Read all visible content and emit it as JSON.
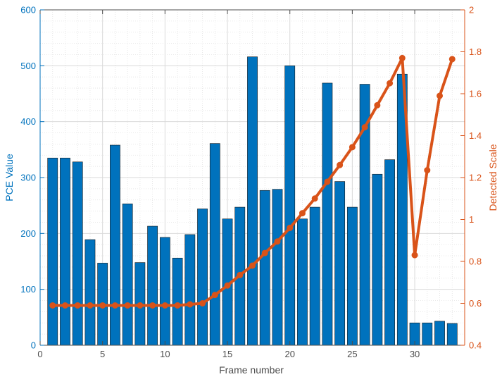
{
  "chart_data": {
    "type": "bar+line",
    "xlabel": "Frame number",
    "ylabel_left": "PCE Value",
    "ylabel_right": "Detected Scale",
    "xlim": [
      0,
      34
    ],
    "ylim_left": [
      0,
      600
    ],
    "ylim_right": [
      0.4,
      2
    ],
    "x_ticks": [
      0,
      5,
      10,
      15,
      20,
      25,
      30
    ],
    "y_left_ticks": [
      0,
      100,
      200,
      300,
      400,
      500,
      600
    ],
    "y_right_ticks": [
      "0.4",
      "0.6",
      "0.8",
      "1",
      "1.2",
      "1.4",
      "1.6",
      "1.8",
      "2"
    ],
    "grid": "major+minor",
    "x": [
      1,
      2,
      3,
      4,
      5,
      6,
      7,
      8,
      9,
      10,
      11,
      12,
      13,
      14,
      15,
      16,
      17,
      18,
      19,
      20,
      21,
      22,
      23,
      24,
      25,
      26,
      27,
      28,
      29,
      30,
      31,
      32,
      33
    ],
    "series": [
      {
        "type": "bar",
        "axis": "left",
        "color": "#0072BD",
        "values": [
          335,
          335,
          328,
          189,
          147,
          358,
          253,
          148,
          213,
          193,
          156,
          198,
          244,
          361,
          226,
          247,
          516,
          277,
          279,
          500,
          226,
          247,
          469,
          293,
          247,
          467,
          306,
          332,
          485,
          40,
          40,
          43,
          39
        ]
      },
      {
        "type": "line",
        "axis": "right",
        "color": "#D95319",
        "values": [
          0.59,
          0.59,
          0.59,
          0.59,
          0.59,
          0.59,
          0.59,
          0.59,
          0.59,
          0.59,
          0.59,
          0.595,
          0.6,
          0.64,
          0.685,
          0.735,
          0.78,
          0.84,
          0.895,
          0.96,
          1.03,
          1.1,
          1.18,
          1.26,
          1.345,
          1.44,
          1.545,
          1.65,
          1.77,
          0.83,
          1.235,
          1.59,
          1.765
        ]
      }
    ]
  }
}
